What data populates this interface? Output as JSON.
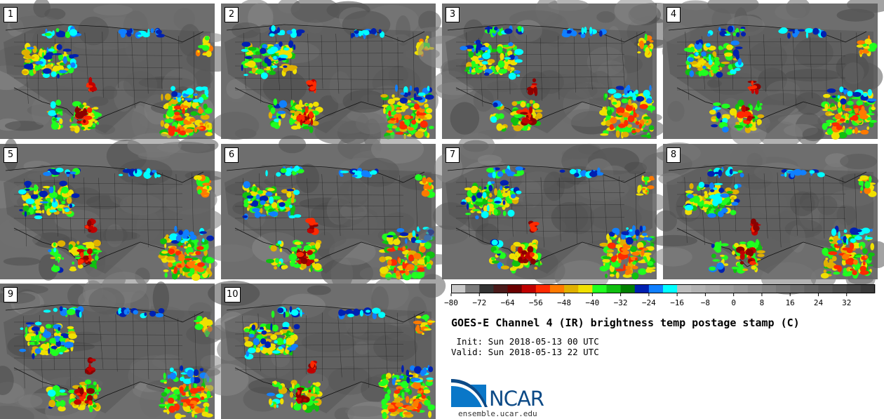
{
  "panels": [
    {
      "label": "1"
    },
    {
      "label": "2"
    },
    {
      "label": "3"
    },
    {
      "label": "4"
    },
    {
      "label": "5"
    },
    {
      "label": "6"
    },
    {
      "label": "7"
    },
    {
      "label": "8"
    },
    {
      "label": "9"
    },
    {
      "label": "10"
    }
  ],
  "title": "GOES-E Channel 4 (IR) brightness temp postage stamp (C)",
  "init": " Init: Sun 2018-05-13 00 UTC",
  "valid": "Valid: Sun 2018-05-13 22 UTC",
  "logo_text": "NCAR",
  "site": "ensemble.ucar.edu",
  "colorbar": {
    "min": -80,
    "max": 40,
    "step": 4,
    "tick_values": [
      -80,
      -72,
      -64,
      -56,
      -48,
      -40,
      -32,
      -24,
      -16,
      -8,
      0,
      8,
      16,
      24,
      32
    ],
    "tick_labels": [
      "−80",
      "−72",
      "−64",
      "−56",
      "−48",
      "−40",
      "−32",
      "−24",
      "−16",
      "−8",
      "0",
      "8",
      "16",
      "24",
      "32"
    ],
    "colors": [
      "#c8c8c8",
      "#7a7a7a",
      "#333333",
      "#4a1a1a",
      "#6b0000",
      "#c00000",
      "#ff2a00",
      "#ff7a00",
      "#e0b000",
      "#f0e000",
      "#20ff20",
      "#10c010",
      "#008000",
      "#0020b0",
      "#1080ff",
      "#00ffff",
      "#bcbcbc",
      "#b2b2b2",
      "#a8a8a8",
      "#9e9e9e",
      "#949494",
      "#8a8a8a",
      "#808080",
      "#767676",
      "#6c6c6c",
      "#626262",
      "#585858",
      "#4e4e4e",
      "#444444",
      "#3a3a3a"
    ]
  }
}
